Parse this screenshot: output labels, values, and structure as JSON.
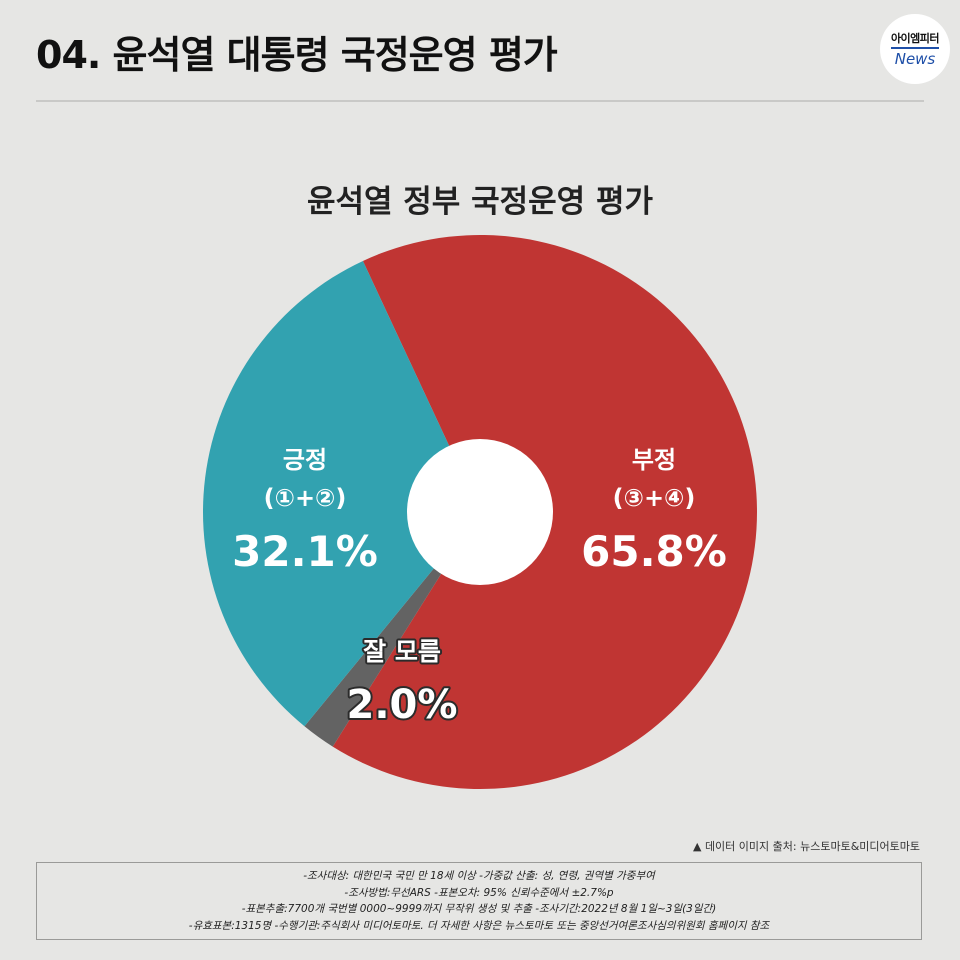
{
  "header": {
    "title": "04. 윤석열 대통령 국정운영 평가",
    "logo_top": "아이엠피터",
    "logo_bottom": "News"
  },
  "chart_data": {
    "type": "pie",
    "variant": "donut",
    "title": "윤석열 정부 국정운영 평가",
    "slices": [
      {
        "name": "부정",
        "sub": "(③+④)",
        "value": 65.8,
        "value_label": "65.8%",
        "color": "#c03533"
      },
      {
        "name": "잘 모름",
        "sub": "",
        "value": 2.0,
        "value_label": "2.0%",
        "color": "#636363"
      },
      {
        "name": "긍정",
        "sub": "(①+②)",
        "value": 32.1,
        "value_label": "32.1%",
        "color": "#32a2b0"
      }
    ]
  },
  "footer": {
    "source": "▲ 데이터 이미지 출처: 뉴스토마토&미디어토마토",
    "notes": [
      "-조사대상: 대한민국 국민 만 18세 이상  -가중값 산출: 성, 연령, 권역별 가중부여",
      "-조사방법:무선ARS -표본오차: 95% 신뢰수준에서 ±2.7%p",
      "-표본추출:7700개 국번별 0000~9999까지 무작위 생성 및 추출 -조사기간:2022년 8월 1일~3일(3일간)",
      "-유효표본:1315명 -수행기관:주식회사 미디어토마토. 더 자세한 사항은 뉴스토마토 또는 중앙선거여론조사심의위원회 홈페이지 참조"
    ]
  }
}
